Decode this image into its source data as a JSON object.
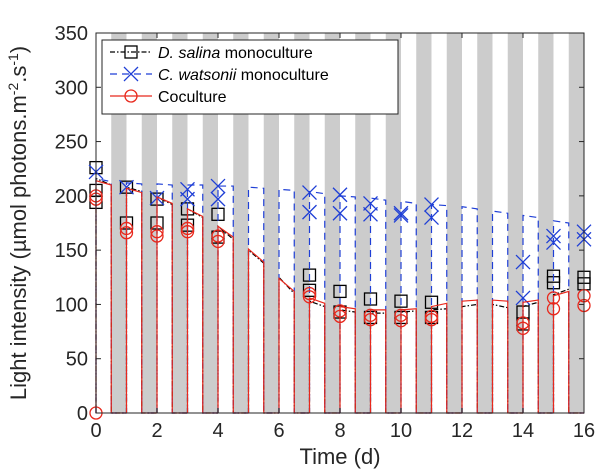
{
  "chart_data": {
    "type": "line",
    "xlabel": "Time (d)",
    "ylabel_parts": [
      "Light intensity (µmol photons.m",
      "-2",
      ".s",
      "-1",
      ")"
    ],
    "xlim": [
      0,
      16
    ],
    "ylim": [
      0,
      350
    ],
    "xticks": [
      "0",
      "2",
      "4",
      "6",
      "8",
      "10",
      "12",
      "14",
      "16"
    ],
    "yticks": [
      "0",
      "50",
      "100",
      "150",
      "200",
      "250",
      "300",
      "350"
    ],
    "night_bands": [
      [
        0.5,
        1.0
      ],
      [
        1.5,
        2.0
      ],
      [
        2.5,
        3.0
      ],
      [
        3.5,
        4.0
      ],
      [
        4.5,
        5.0
      ],
      [
        5.5,
        6.0
      ],
      [
        6.5,
        7.0
      ],
      [
        7.5,
        8.0
      ],
      [
        8.5,
        9.0
      ],
      [
        9.5,
        10.0
      ],
      [
        10.5,
        11.0
      ],
      [
        11.5,
        12.0
      ],
      [
        12.5,
        13.0
      ],
      [
        13.5,
        14.0
      ],
      [
        14.5,
        15.0
      ],
      [
        15.5,
        16.0
      ]
    ],
    "legend": {
      "placement": "top-left",
      "entries": [
        {
          "italic": "D. salina",
          "rest": " monoculture",
          "color": "#000000",
          "dash": "5,2,1.5,2",
          "marker": "square"
        },
        {
          "italic": "C. watsonii",
          "rest": " monoculture",
          "color": "#1f3fd6",
          "dash": "7,5",
          "marker": "star"
        },
        {
          "italic": "",
          "rest": "Coculture",
          "color": "#e8281c",
          "dash": "",
          "marker": "circle"
        }
      ]
    },
    "series": [
      {
        "name": "D. salina monoculture",
        "color": "#000000",
        "line_style": "dash-dot",
        "day_envelope": [
          [
            0.0,
            216
          ],
          [
            0.5,
            210
          ],
          [
            1.0,
            208
          ],
          [
            1.5,
            204
          ],
          [
            2.0,
            199
          ],
          [
            2.5,
            192
          ],
          [
            3.0,
            188
          ],
          [
            3.5,
            180
          ],
          [
            4.0,
            172
          ],
          [
            4.5,
            160
          ],
          [
            5.0,
            150
          ],
          [
            5.5,
            138
          ],
          [
            6.0,
            125
          ],
          [
            6.5,
            110
          ],
          [
            7.0,
            103
          ],
          [
            7.5,
            98
          ],
          [
            8.0,
            95
          ],
          [
            8.5,
            93
          ],
          [
            9.0,
            92
          ],
          [
            9.5,
            92
          ],
          [
            10.0,
            93
          ],
          [
            10.5,
            94
          ],
          [
            11.0,
            95
          ],
          [
            11.5,
            96
          ],
          [
            12.0,
            98
          ],
          [
            12.5,
            100
          ],
          [
            13.0,
            100
          ],
          [
            13.5,
            97
          ],
          [
            14.0,
            98
          ],
          [
            14.5,
            102
          ],
          [
            15.0,
            109
          ],
          [
            15.5,
            114
          ],
          [
            16.0,
            118
          ]
        ],
        "points": [
          [
            0,
            226
          ],
          [
            0,
            205
          ],
          [
            0,
            194
          ],
          [
            1,
            208
          ],
          [
            1,
            175
          ],
          [
            2,
            197
          ],
          [
            2,
            175
          ],
          [
            3,
            188
          ],
          [
            3,
            173
          ],
          [
            4,
            183
          ],
          [
            4,
            162
          ],
          [
            7,
            127
          ],
          [
            7,
            113
          ],
          [
            8,
            112
          ],
          [
            8,
            93
          ],
          [
            9,
            105
          ],
          [
            9,
            88
          ],
          [
            10,
            103
          ],
          [
            10,
            88
          ],
          [
            11,
            102
          ],
          [
            11,
            88
          ],
          [
            14,
            93
          ],
          [
            14,
            82
          ],
          [
            15,
            126
          ],
          [
            15,
            120
          ],
          [
            16,
            125
          ],
          [
            16,
            119
          ]
        ]
      },
      {
        "name": "C. watsonii monoculture",
        "color": "#1f3fd6",
        "line_style": "dashed",
        "day_envelope": [
          [
            0.0,
            216
          ],
          [
            0.5,
            213
          ],
          [
            1.0,
            212
          ],
          [
            1.5,
            211
          ],
          [
            2.0,
            211
          ],
          [
            2.5,
            210
          ],
          [
            3.0,
            210
          ],
          [
            3.5,
            210
          ],
          [
            4.0,
            209
          ],
          [
            4.5,
            209
          ],
          [
            5.0,
            208
          ],
          [
            5.5,
            207
          ],
          [
            6.0,
            206
          ],
          [
            6.5,
            205
          ],
          [
            7.0,
            204
          ],
          [
            7.5,
            202
          ],
          [
            8.0,
            200
          ],
          [
            8.5,
            199
          ],
          [
            9.0,
            198
          ],
          [
            9.5,
            196
          ],
          [
            10.0,
            195
          ],
          [
            10.5,
            193
          ],
          [
            11.0,
            192
          ],
          [
            11.5,
            191
          ],
          [
            12.0,
            190
          ],
          [
            12.5,
            188
          ],
          [
            13.0,
            186
          ],
          [
            13.5,
            184
          ],
          [
            14.0,
            182
          ],
          [
            14.5,
            180
          ],
          [
            15.0,
            177
          ],
          [
            15.5,
            175
          ],
          [
            16.0,
            172
          ]
        ],
        "points": [
          [
            0,
            222
          ],
          [
            1,
            208
          ],
          [
            2,
            198
          ],
          [
            3,
            206
          ],
          [
            3,
            197
          ],
          [
            4,
            209
          ],
          [
            4,
            197
          ],
          [
            7,
            203
          ],
          [
            7,
            185
          ],
          [
            8,
            201
          ],
          [
            8,
            184
          ],
          [
            9,
            193
          ],
          [
            9,
            183
          ],
          [
            10,
            184
          ],
          [
            10,
            182
          ],
          [
            11,
            192
          ],
          [
            11,
            180
          ],
          [
            14,
            139
          ],
          [
            14,
            106
          ],
          [
            15,
            163
          ],
          [
            15,
            157
          ],
          [
            16,
            167
          ],
          [
            16,
            160
          ]
        ]
      },
      {
        "name": "Coculture",
        "color": "#e8281c",
        "line_style": "solid",
        "day_envelope": [
          [
            0.0,
            214
          ],
          [
            0.5,
            210
          ],
          [
            1.0,
            207
          ],
          [
            1.5,
            203
          ],
          [
            2.0,
            199
          ],
          [
            2.5,
            193
          ],
          [
            3.0,
            188
          ],
          [
            3.5,
            181
          ],
          [
            4.0,
            172
          ],
          [
            4.5,
            162
          ],
          [
            5.0,
            151
          ],
          [
            5.5,
            139
          ],
          [
            6.0,
            124
          ],
          [
            6.5,
            112
          ],
          [
            7.0,
            106
          ],
          [
            7.5,
            101
          ],
          [
            8.0,
            98
          ],
          [
            8.5,
            96
          ],
          [
            9.0,
            95
          ],
          [
            9.5,
            95
          ],
          [
            10.0,
            95
          ],
          [
            10.5,
            96
          ],
          [
            11.0,
            98
          ],
          [
            11.5,
            101
          ],
          [
            12.0,
            103
          ],
          [
            12.5,
            104
          ],
          [
            13.0,
            104
          ],
          [
            13.5,
            103
          ],
          [
            14.0,
            102
          ],
          [
            14.5,
            104
          ],
          [
            15.0,
            108
          ],
          [
            15.5,
            112
          ],
          [
            16.0,
            114
          ]
        ],
        "points": [
          [
            0,
            0
          ],
          [
            0,
            200
          ],
          [
            0,
            197
          ],
          [
            1,
            170
          ],
          [
            1,
            166
          ],
          [
            2,
            167
          ],
          [
            2,
            163
          ],
          [
            3,
            170
          ],
          [
            3,
            167
          ],
          [
            4,
            163
          ],
          [
            4,
            158
          ],
          [
            7,
            110
          ],
          [
            7,
            107
          ],
          [
            8,
            94
          ],
          [
            8,
            89
          ],
          [
            9,
            90
          ],
          [
            9,
            86
          ],
          [
            10,
            90
          ],
          [
            10,
            85
          ],
          [
            11,
            89
          ],
          [
            11,
            86
          ],
          [
            14,
            83
          ],
          [
            14,
            78
          ],
          [
            15,
            106
          ],
          [
            15,
            96
          ],
          [
            16,
            108
          ],
          [
            16,
            99
          ]
        ]
      }
    ]
  }
}
